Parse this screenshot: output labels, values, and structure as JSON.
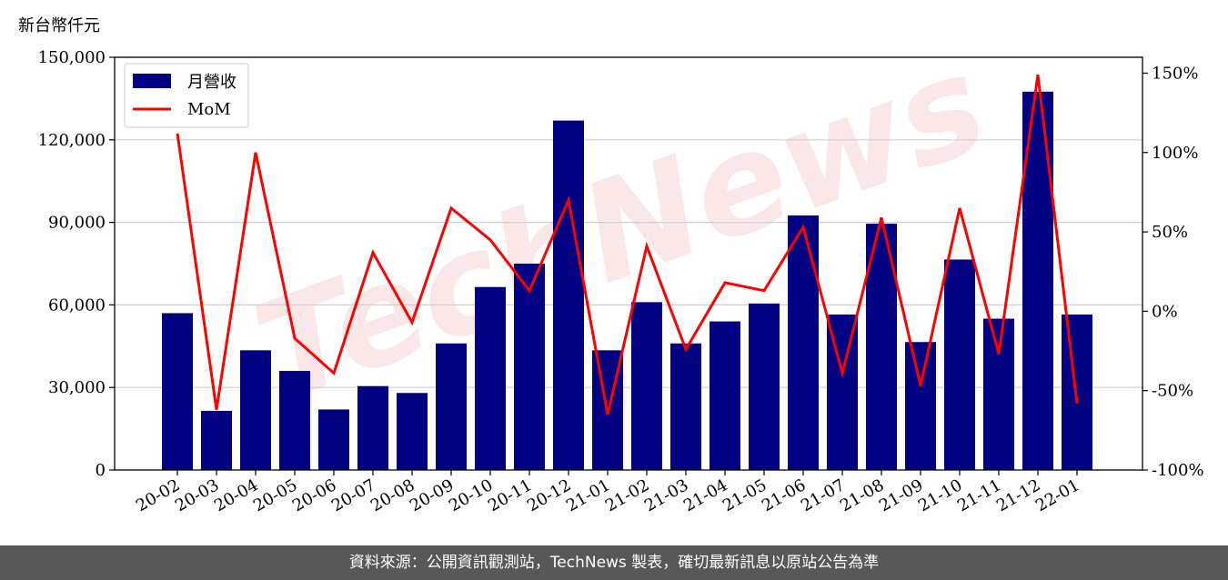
{
  "chart_data": {
    "type": "bar",
    "y_unit_label": "新台幣仟元",
    "categories": [
      "20-02",
      "20-03",
      "20-04",
      "20-05",
      "20-06",
      "20-07",
      "20-08",
      "20-09",
      "20-10",
      "20-11",
      "20-12",
      "21-01",
      "21-02",
      "21-03",
      "21-04",
      "21-05",
      "21-06",
      "21-07",
      "21-08",
      "21-09",
      "21-10",
      "21-11",
      "21-12",
      "22-01"
    ],
    "series": [
      {
        "name": "月營收",
        "type": "bar",
        "axis": "left",
        "color": "#000080",
        "values": [
          57000,
          21500,
          43500,
          36000,
          22000,
          30500,
          28000,
          46000,
          66500,
          75000,
          127000,
          43500,
          61000,
          46000,
          54000,
          60500,
          92500,
          56500,
          89500,
          46500,
          76500,
          55000,
          137500,
          56500
        ]
      },
      {
        "name": "MoM",
        "type": "line",
        "axis": "right",
        "color": "#ff0000",
        "values": [
          112,
          -62,
          100,
          -17,
          -39,
          37,
          -7,
          65,
          45,
          13,
          70,
          -65,
          41,
          -24,
          18,
          13,
          53,
          -39,
          59,
          -47,
          65,
          -27,
          149,
          -58
        ]
      }
    ],
    "y_left": {
      "lim": [
        0,
        150000
      ],
      "ticks": [
        0,
        30000,
        60000,
        90000,
        120000,
        150000
      ],
      "tick_labels": [
        "0",
        "30,000",
        "60,000",
        "90,000",
        "120,000",
        "150,000"
      ]
    },
    "y_right": {
      "lim": [
        -100,
        160
      ],
      "ticks": [
        -100,
        -50,
        0,
        50,
        100,
        150
      ],
      "tick_labels": [
        "-100%",
        "-50%",
        "0%",
        "50%",
        "100%",
        "150%"
      ]
    },
    "grid": "horizontal",
    "legend_position": "top-left",
    "watermark": "TechNews"
  },
  "footer": {
    "text": "資料來源：公開資訊觀測站，TechNews 製表，確切最新訊息以原站公告為準"
  }
}
